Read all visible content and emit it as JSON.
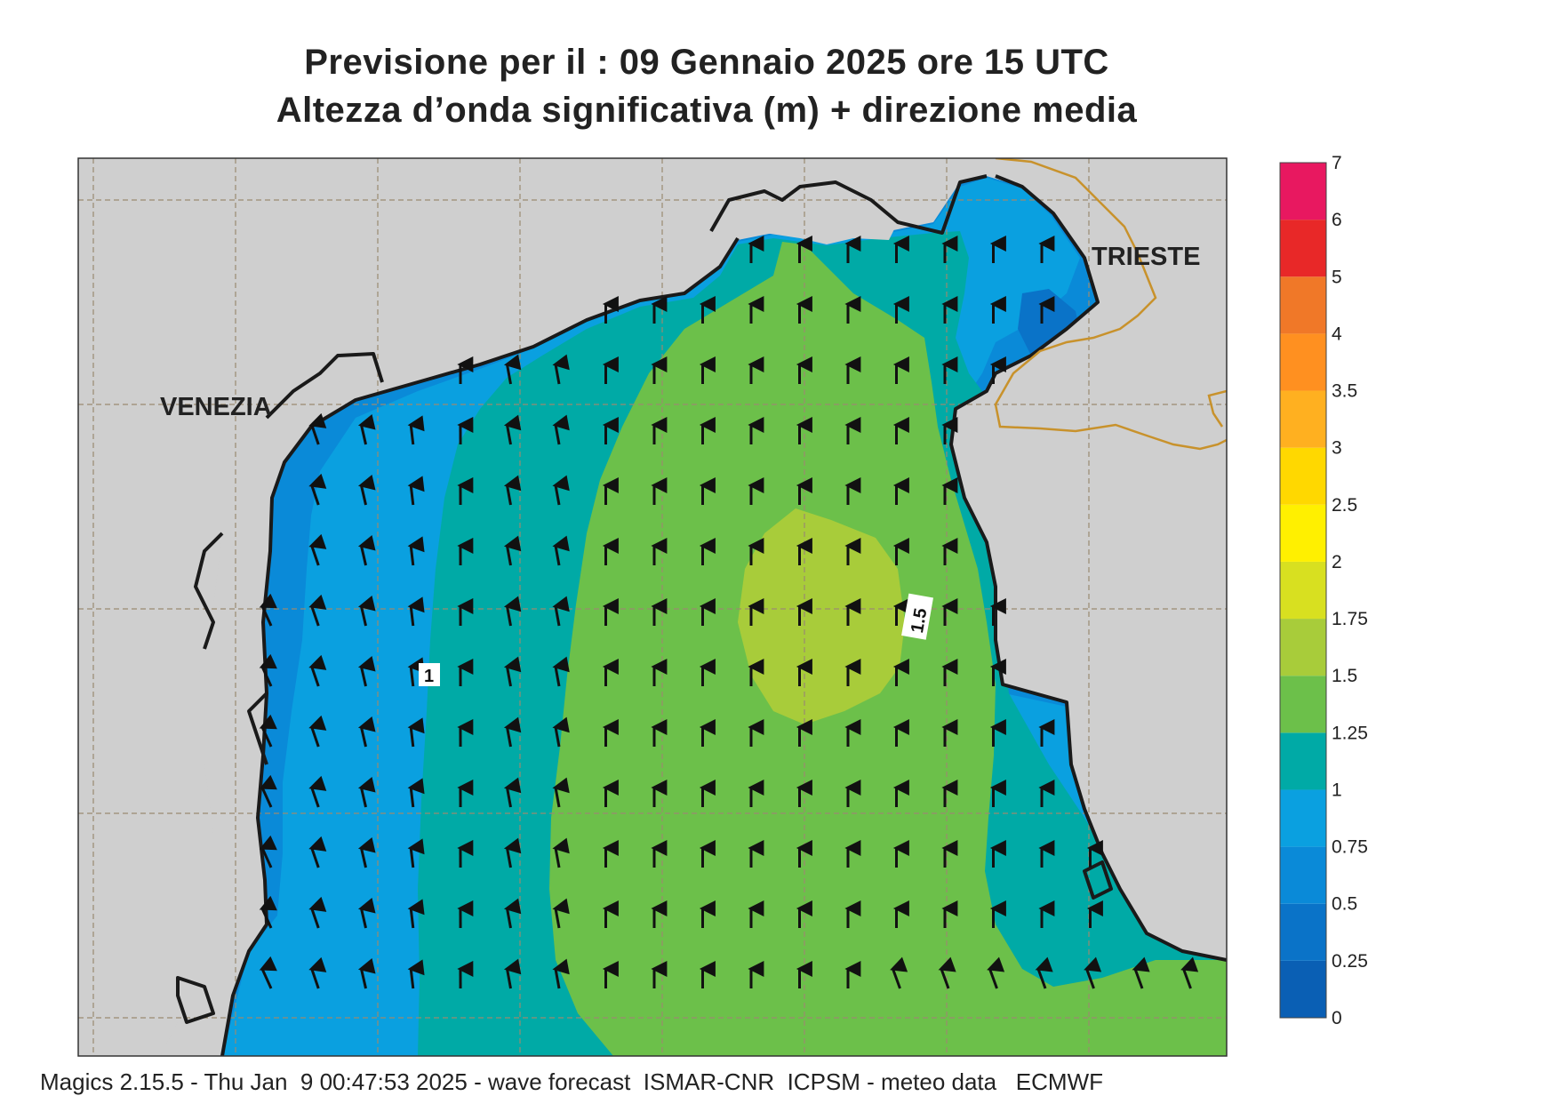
{
  "title": {
    "line1": "Previsione per il  :  09  Gennaio  2025   ore 15 UTC",
    "line2": "Altezza d’onda significativa (m) + direzione media"
  },
  "cities": {
    "venezia": "VENEZIA",
    "trieste": "TRIESTE"
  },
  "contour_labels": {
    "low": "1",
    "high": "1.5"
  },
  "legend": {
    "ticks": [
      "0",
      "0.25",
      "0.5",
      "0.75",
      "1",
      "1.25",
      "1.5",
      "1.75",
      "2",
      "2.5",
      "3",
      "3.5",
      "4",
      "5",
      "6",
      "7"
    ],
    "colors": [
      "#0a5fb4",
      "#0a73c8",
      "#0a8ad8",
      "#0aa0e0",
      "#00aaa6",
      "#6cc04a",
      "#a8cc3a",
      "#d8e020",
      "#fff000",
      "#ffd800",
      "#ffb020",
      "#ff9020",
      "#f07828",
      "#e82828",
      "#e81860"
    ]
  },
  "map": {
    "land_color": "#cfcfcf",
    "shoreline_color": "#1a1a1a",
    "border_color": "#c8922c",
    "arrow_direction": "north (slightly north-west on the west side)"
  },
  "footer": "Magics 2.15.5 - Thu Jan  9 00:47:53 2025 - wave forecast  ISMAR-CNR  ICPSM - meteo data   ECMWF"
}
